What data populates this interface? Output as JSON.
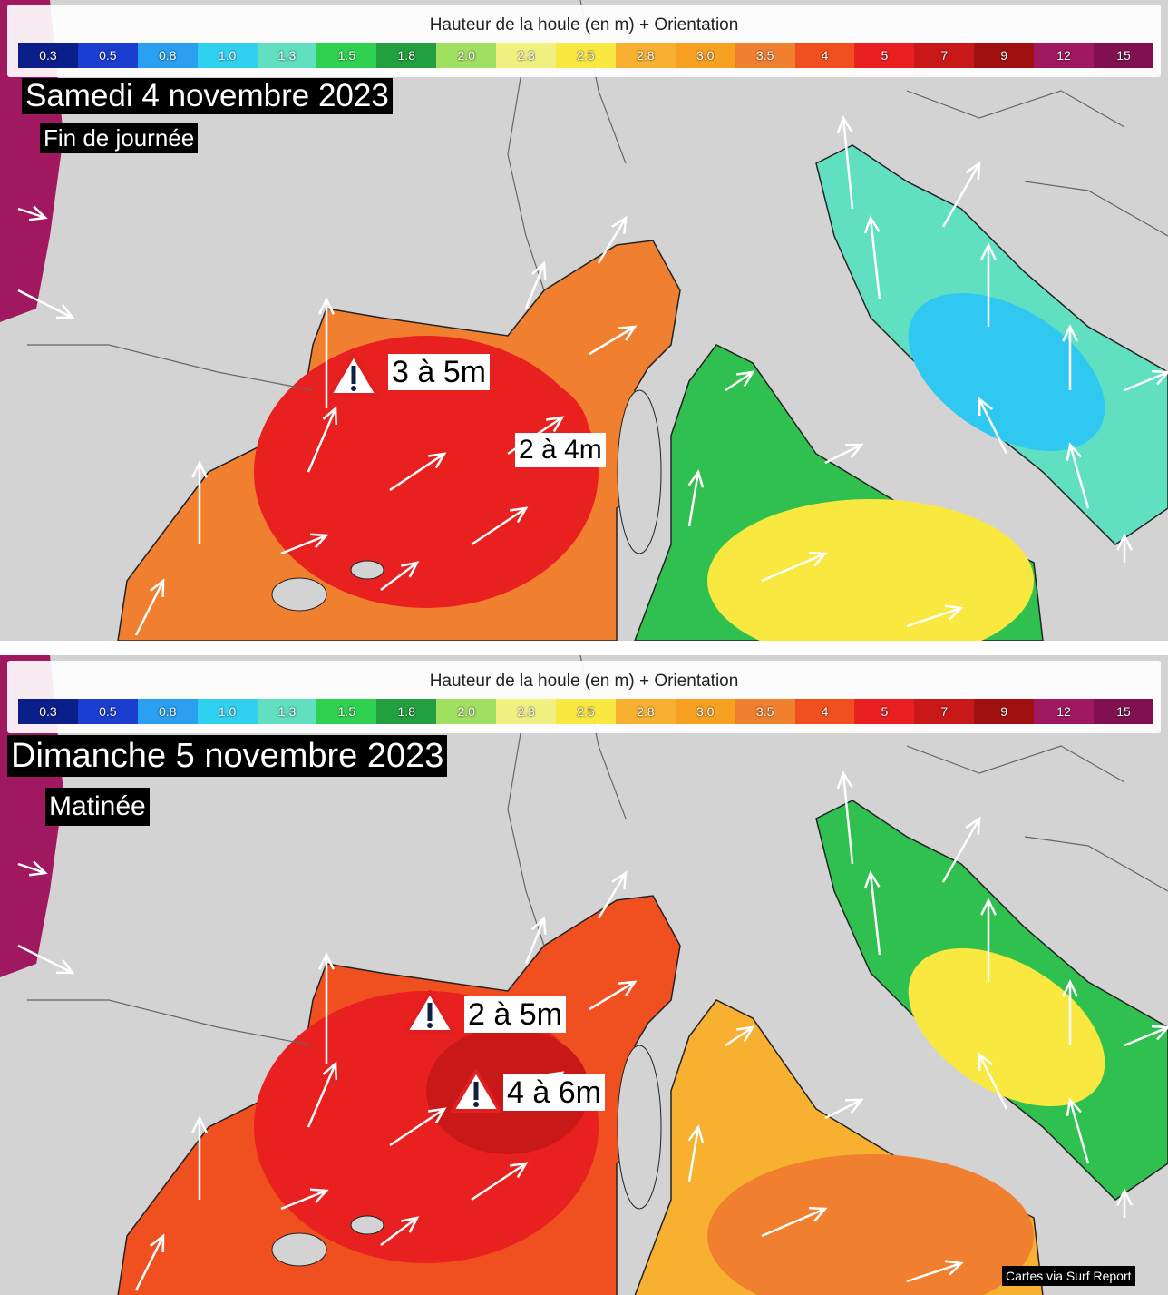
{
  "legend": {
    "title": "Hauteur de la houle (en m) + Orientation",
    "items": [
      {
        "label": "0.3",
        "color": "#0a1f8a"
      },
      {
        "label": "0.5",
        "color": "#1a3fd0"
      },
      {
        "label": "0.8",
        "color": "#2a9ff0"
      },
      {
        "label": "1.0",
        "color": "#30d0f0"
      },
      {
        "label": "1.3",
        "color": "#60e0c0"
      },
      {
        "label": "1.5",
        "color": "#30d050"
      },
      {
        "label": "1.8",
        "color": "#22a040"
      },
      {
        "label": "2.0",
        "color": "#a0e060"
      },
      {
        "label": "2.3",
        "color": "#f0f080"
      },
      {
        "label": "2.5",
        "color": "#f8e840"
      },
      {
        "label": "2.8",
        "color": "#f8b030"
      },
      {
        "label": "3.0",
        "color": "#f8a020"
      },
      {
        "label": "3.5",
        "color": "#f08030"
      },
      {
        "label": "4",
        "color": "#f05020"
      },
      {
        "label": "5",
        "color": "#e82020"
      },
      {
        "label": "7",
        "color": "#c81818"
      },
      {
        "label": "9",
        "color": "#a01010"
      },
      {
        "label": "12",
        "color": "#a01860"
      },
      {
        "label": "15",
        "color": "#801050"
      }
    ]
  },
  "panels": [
    {
      "date": "Samedi 4 novembre 2023",
      "period": "Fin de journée",
      "callouts": [
        "3 à 5m",
        "2 à 4m"
      ]
    },
    {
      "date": "Dimanche 5 novembre 2023",
      "period": "Matinée",
      "callouts": [
        "2 à 5m",
        "4 à 6m"
      ]
    }
  ],
  "credit": "Cartes via Surf Report"
}
